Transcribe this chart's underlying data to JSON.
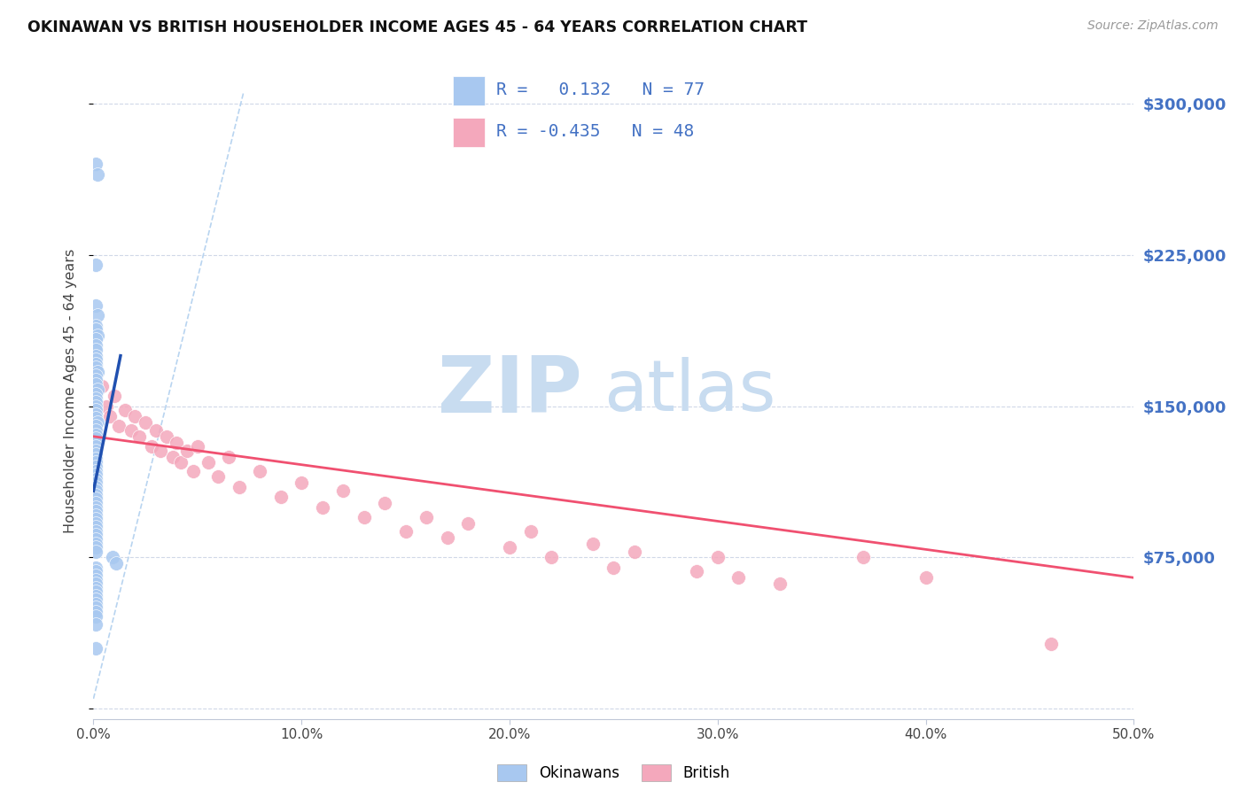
{
  "title": "OKINAWAN VS BRITISH HOUSEHOLDER INCOME AGES 45 - 64 YEARS CORRELATION CHART",
  "source": "Source: ZipAtlas.com",
  "ylabel": "Householder Income Ages 45 - 64 years",
  "xlim": [
    0.0,
    0.5
  ],
  "ylim": [
    -5000,
    320000
  ],
  "yticks": [
    0,
    75000,
    150000,
    225000,
    300000
  ],
  "ytick_labels": [
    "",
    "$75,000",
    "$150,000",
    "$225,000",
    "$300,000"
  ],
  "right_ytick_labels": [
    "",
    "$75,000",
    "$150,000",
    "$225,000",
    "$300,000"
  ],
  "xticks": [
    0.0,
    0.1,
    0.2,
    0.3,
    0.4,
    0.5
  ],
  "xtick_labels": [
    "0.0%",
    "10.0%",
    "20.0%",
    "30.0%",
    "40.0%",
    "50.0%"
  ],
  "legend_r_okinawan": " 0.132",
  "legend_n_okinawan": "77",
  "legend_r_british": "-0.435",
  "legend_n_british": "48",
  "okinawan_color": "#A8C8F0",
  "british_color": "#F4A8BC",
  "okinawan_line_color": "#2050B0",
  "british_line_color": "#F05070",
  "ref_line_color": "#B8D4F0",
  "background_color": "#FFFFFF",
  "grid_color": "#D0D8E8",
  "right_axis_color": "#4472C4",
  "watermark_zip_color": "#C8DCF0",
  "watermark_atlas_color": "#C0D4E8",
  "okinawan_scatter_x": [
    0.001,
    0.002,
    0.001,
    0.001,
    0.002,
    0.001,
    0.001,
    0.002,
    0.001,
    0.001,
    0.001,
    0.001,
    0.001,
    0.001,
    0.001,
    0.002,
    0.001,
    0.001,
    0.001,
    0.002,
    0.001,
    0.001,
    0.001,
    0.001,
    0.001,
    0.001,
    0.001,
    0.002,
    0.001,
    0.001,
    0.001,
    0.001,
    0.001,
    0.001,
    0.001,
    0.001,
    0.001,
    0.001,
    0.001,
    0.001,
    0.001,
    0.001,
    0.001,
    0.001,
    0.001,
    0.001,
    0.001,
    0.001,
    0.001,
    0.001,
    0.001,
    0.001,
    0.001,
    0.001,
    0.001,
    0.001,
    0.001,
    0.001,
    0.001,
    0.001,
    0.009,
    0.011,
    0.001,
    0.001,
    0.001,
    0.001,
    0.001,
    0.001,
    0.001,
    0.001,
    0.001,
    0.001,
    0.001,
    0.001,
    0.001,
    0.001,
    0.001
  ],
  "okinawan_scatter_y": [
    270000,
    265000,
    220000,
    200000,
    195000,
    190000,
    188000,
    185000,
    183000,
    180000,
    178000,
    175000,
    173000,
    171000,
    169000,
    167000,
    165000,
    163000,
    161000,
    158000,
    156000,
    154000,
    152000,
    150000,
    148000,
    146000,
    144000,
    142000,
    140000,
    138000,
    136000,
    134000,
    132000,
    130000,
    128000,
    126000,
    124000,
    122000,
    120000,
    118000,
    116000,
    114000,
    112000,
    110000,
    108000,
    106000,
    104000,
    102000,
    100000,
    98000,
    96000,
    94000,
    92000,
    90000,
    88000,
    86000,
    84000,
    82000,
    80000,
    78000,
    75000,
    72000,
    70000,
    68000,
    66000,
    64000,
    62000,
    60000,
    58000,
    56000,
    54000,
    52000,
    50000,
    48000,
    46000,
    42000,
    30000
  ],
  "british_scatter_x": [
    0.004,
    0.006,
    0.008,
    0.01,
    0.012,
    0.015,
    0.018,
    0.02,
    0.022,
    0.025,
    0.028,
    0.03,
    0.032,
    0.035,
    0.038,
    0.04,
    0.042,
    0.045,
    0.048,
    0.05,
    0.055,
    0.06,
    0.065,
    0.07,
    0.08,
    0.09,
    0.1,
    0.11,
    0.12,
    0.13,
    0.14,
    0.15,
    0.16,
    0.17,
    0.18,
    0.2,
    0.21,
    0.22,
    0.24,
    0.25,
    0.26,
    0.29,
    0.3,
    0.31,
    0.33,
    0.37,
    0.4,
    0.46
  ],
  "british_scatter_y": [
    160000,
    150000,
    145000,
    155000,
    140000,
    148000,
    138000,
    145000,
    135000,
    142000,
    130000,
    138000,
    128000,
    135000,
    125000,
    132000,
    122000,
    128000,
    118000,
    130000,
    122000,
    115000,
    125000,
    110000,
    118000,
    105000,
    112000,
    100000,
    108000,
    95000,
    102000,
    88000,
    95000,
    85000,
    92000,
    80000,
    88000,
    75000,
    82000,
    70000,
    78000,
    68000,
    75000,
    65000,
    62000,
    75000,
    65000,
    32000
  ],
  "okin_trend_x0": 0.0,
  "okin_trend_y0": 108000,
  "okin_trend_x1": 0.013,
  "okin_trend_y1": 175000,
  "brit_trend_x0": 0.0,
  "brit_trend_y0": 135000,
  "brit_trend_x1": 0.5,
  "brit_trend_y1": 65000,
  "ref_line_x0": 0.0,
  "ref_line_y0": 5000,
  "ref_line_x1": 0.072,
  "ref_line_y1": 305000
}
